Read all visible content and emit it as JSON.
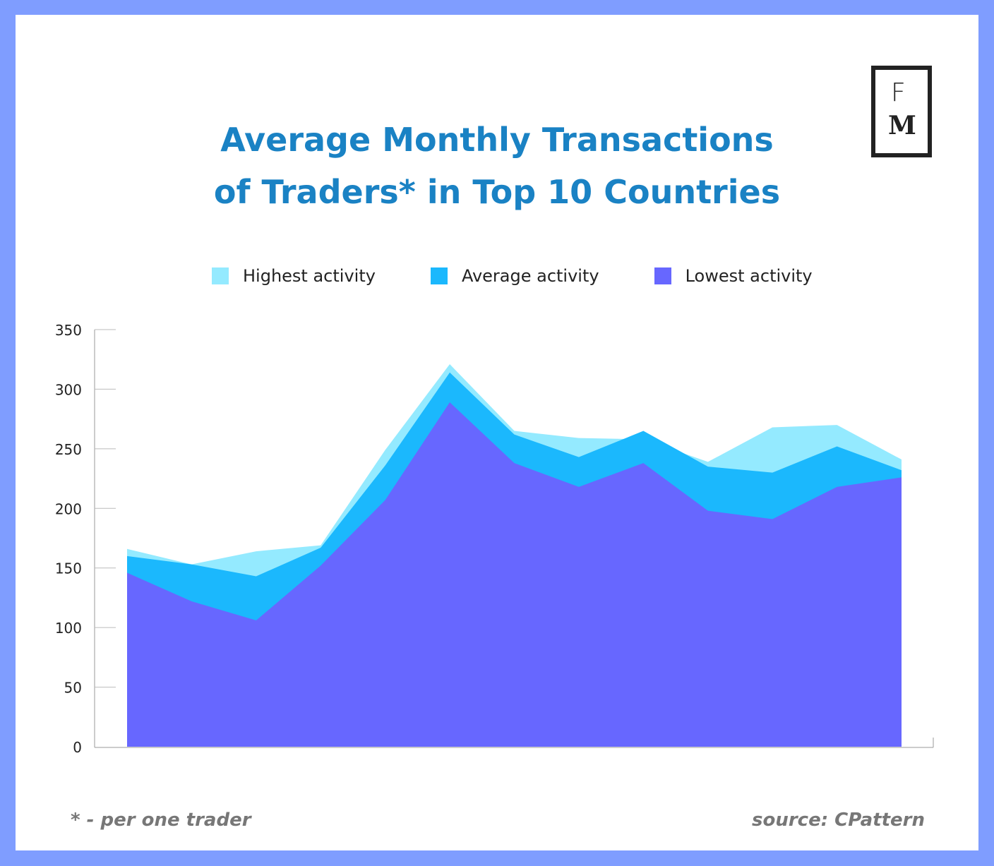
{
  "logo": {
    "top": "F",
    "bottom": "M"
  },
  "footnote": "* - per one trader",
  "source": "source: CPattern",
  "colors": {
    "highest": "#94eaff",
    "average": "#1bb8fd",
    "lowest": "#6767ff",
    "title": "#1a82c4"
  },
  "chart_data": {
    "type": "area",
    "title": "Average Monthly Transactions of Traders* in Top 10 Countries",
    "title_lines": [
      "Average Monthly Transactions",
      "of Traders* in Top 10 Countries"
    ],
    "xlabel": "",
    "ylabel": "",
    "ylim": [
      0,
      350
    ],
    "yticks": [
      "0",
      "50",
      "100",
      "150",
      "200",
      "250",
      "300",
      "350"
    ],
    "x": [
      1,
      2,
      3,
      4,
      5,
      6,
      7,
      8,
      9,
      10,
      11,
      12,
      13
    ],
    "legend_position": "top",
    "series": [
      {
        "name": "Highest activity",
        "values": [
          166,
          153,
          164,
          169,
          249,
          321,
          265,
          259,
          258,
          239,
          268,
          270,
          241
        ]
      },
      {
        "name": "Average activity",
        "values": [
          160,
          153,
          143,
          167,
          236,
          314,
          262,
          243,
          265,
          235,
          230,
          252,
          232
        ]
      },
      {
        "name": "Lowest activity",
        "values": [
          146,
          122,
          106,
          152,
          207,
          289,
          238,
          218,
          238,
          198,
          191,
          218,
          226
        ]
      }
    ]
  }
}
